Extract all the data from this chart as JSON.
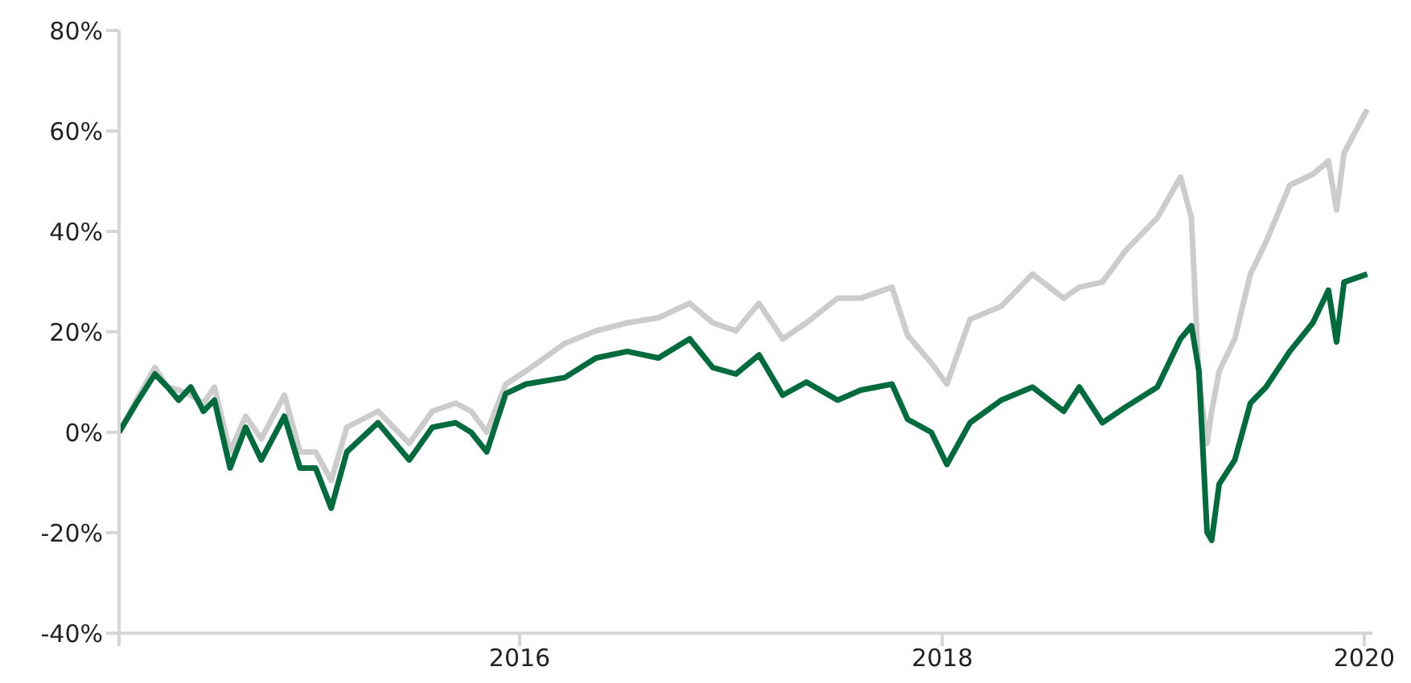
{
  "chart_data": {
    "type": "line",
    "x": [
      "2014-02-07",
      "2014-03-09",
      "2014-04-10",
      "2014-05-02",
      "2014-05-21",
      "2014-06-11",
      "2014-07-03",
      "2014-07-22",
      "2014-08-18",
      "2014-09-14",
      "2014-10-11",
      "2014-11-20",
      "2014-12-17",
      "2015-01-13",
      "2015-02-09",
      "2015-03-08",
      "2015-05-01",
      "2015-06-24",
      "2015-08-03",
      "2015-09-12",
      "2015-10-09",
      "2015-11-05",
      "2015-12-08",
      "2016-01-12",
      "2016-03-19",
      "2016-05-12",
      "2016-07-05",
      "2016-08-28",
      "2016-10-21",
      "2016-11-30",
      "2017-01-09",
      "2017-02-18",
      "2017-03-31",
      "2017-05-11",
      "2017-07-04",
      "2017-08-13",
      "2017-10-06",
      "2017-11-02",
      "2017-12-13",
      "2018-01-09",
      "2018-02-18",
      "2018-04-13",
      "2018-06-06",
      "2018-07-30",
      "2018-08-26",
      "2018-10-05",
      "2018-11-15",
      "2019-01-08",
      "2019-02-17",
      "2019-03-08",
      "2019-03-21",
      "2019-04-04",
      "2019-04-12",
      "2019-04-25",
      "2019-05-22",
      "2019-06-18",
      "2019-07-15",
      "2019-08-25",
      "2019-10-04",
      "2019-10-31",
      "2019-11-14",
      "2019-11-27",
      "2020-01-06"
    ],
    "series": [
      {
        "color": "#cccccc",
        "values": [
          0,
          6.4,
          12.9,
          9,
          8.4,
          7.4,
          5.8,
          9,
          -3.9,
          3.2,
          -1.3,
          7.4,
          -3.9,
          -3.9,
          -9.6,
          1,
          4.2,
          -2.2,
          4.2,
          5.8,
          4.2,
          0,
          9.6,
          12.2,
          17.7,
          20.2,
          21.8,
          22.8,
          25.7,
          21.8,
          20.2,
          25.7,
          18.6,
          21.8,
          26.7,
          26.7,
          28.9,
          19.3,
          13.8,
          9.6,
          22.5,
          25.1,
          31.5,
          26.7,
          28.9,
          29.9,
          36.3,
          42.7,
          50.8,
          42.7,
          10.6,
          -2.2,
          4.2,
          12.2,
          18.6,
          31.5,
          37.9,
          49.2,
          51.4,
          54,
          44.3,
          55.6,
          64.3
        ]
      },
      {
        "color": "#006b3c",
        "values": [
          0,
          5.8,
          11.6,
          9,
          6.4,
          9,
          4.2,
          6.4,
          -7.1,
          1,
          -5.5,
          3.2,
          -7.1,
          -7.1,
          -15.1,
          -3.9,
          1.9,
          -5.5,
          1,
          1.9,
          0,
          -3.9,
          7.7,
          9.6,
          10.9,
          14.8,
          16.1,
          14.8,
          18.6,
          12.9,
          11.6,
          15.4,
          7.4,
          10,
          6.4,
          8.4,
          9.6,
          2.6,
          0,
          -6.4,
          1.9,
          6.4,
          9,
          4.2,
          9,
          1.9,
          5.1,
          9,
          18.6,
          21.2,
          12.2,
          -19.9,
          -21.5,
          -10.3,
          -5.5,
          5.8,
          9,
          16.1,
          21.8,
          28.3,
          18,
          29.9,
          31.5
        ]
      }
    ],
    "xlim": [
      "2014-02-07",
      "2020-01-15"
    ],
    "xticks": [
      {
        "value": "2014-02-07",
        "label": null
      },
      "2016",
      "2018",
      "2020"
    ],
    "ylim": [
      -40,
      80
    ],
    "yticks": [
      {
        "value": -40,
        "label": "-40%"
      },
      {
        "value": -20,
        "label": "-20%"
      },
      {
        "value": 0,
        "label": "0%"
      },
      {
        "value": 20,
        "label": "20%"
      },
      {
        "value": 40,
        "label": "40%"
      },
      {
        "value": 60,
        "label": "60%"
      },
      {
        "value": 80,
        "label": "80%"
      }
    ],
    "grid": false,
    "legend": false,
    "marker": "none",
    "line_style": "solid"
  }
}
